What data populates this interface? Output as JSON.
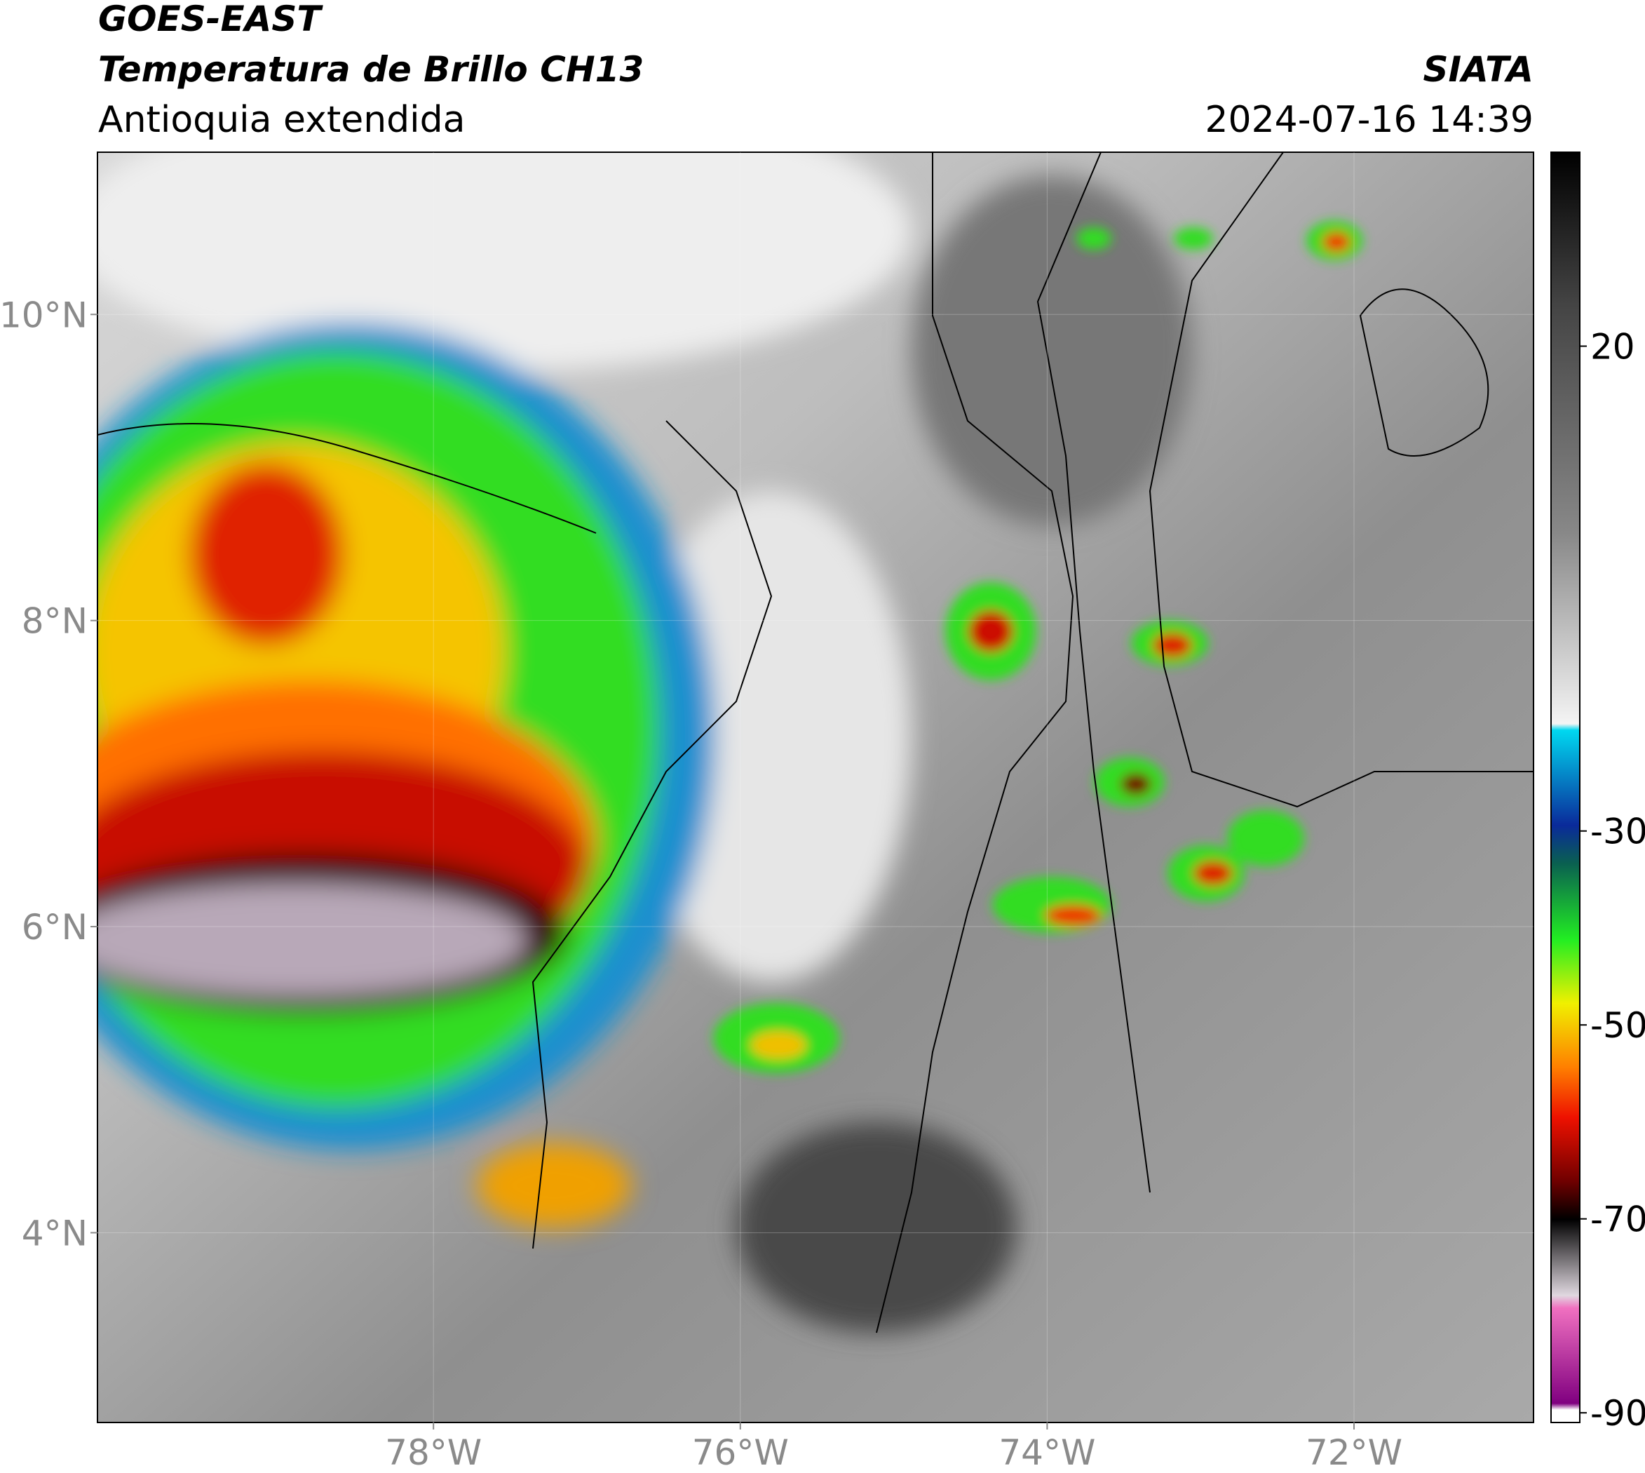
{
  "header": {
    "title": "GOES-EAST",
    "subtitle": "Temperatura de Brillo CH13",
    "region": "Antioquia extendida",
    "source": "SIATA",
    "datetime": "2024-07-16 14:39"
  },
  "map": {
    "xlim": [
      -80.19,
      -70.83
    ],
    "ylim": [
      2.76,
      11.06
    ],
    "lat_ticks": [
      {
        "value": 10,
        "label": "10°N"
      },
      {
        "value": 8,
        "label": "8°N"
      },
      {
        "value": 6,
        "label": "6°N"
      },
      {
        "value": 4,
        "label": "4°N"
      }
    ],
    "lon_ticks": [
      {
        "value": -78,
        "label": "78°W"
      },
      {
        "value": -76,
        "label": "76°W"
      },
      {
        "value": -74,
        "label": "74°W"
      },
      {
        "value": -72,
        "label": "72°W"
      }
    ],
    "grid": true
  },
  "colorbar": {
    "range": [
      -91,
      40
    ],
    "ticks": [
      20,
      -30,
      -50,
      -70,
      -90
    ]
  }
}
